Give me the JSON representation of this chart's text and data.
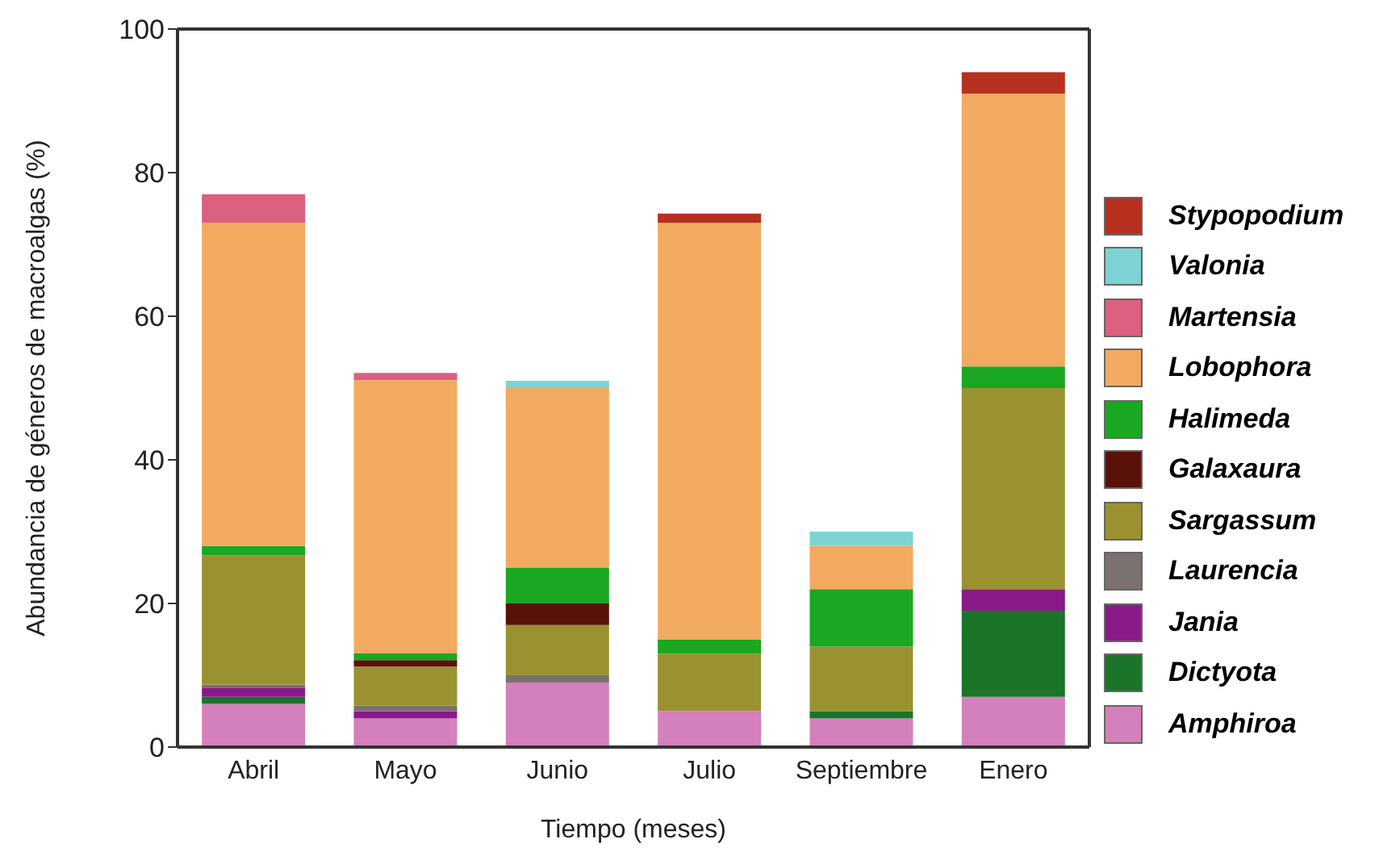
{
  "chart_data": {
    "type": "bar",
    "stacked": true,
    "xlabel": "Tiempo (meses)",
    "ylabel": "Abundancia de géneros de macroalgas (%)",
    "categories": [
      "Abril",
      "Mayo",
      "Junio",
      "Julio",
      "Septiembre",
      "Enero"
    ],
    "ylim": [
      0,
      100
    ],
    "yticks": [
      0,
      20,
      40,
      60,
      80,
      100
    ],
    "legend": "right",
    "grid": false,
    "series": [
      {
        "name": "Amphiroa",
        "color": "#d480bc",
        "values": [
          6,
          4,
          9,
          5,
          4,
          7
        ]
      },
      {
        "name": "Dictyota",
        "color": "#1a7528",
        "values": [
          1,
          null,
          null,
          null,
          1,
          12
        ]
      },
      {
        "name": "Jania",
        "color": "#8a1a8a",
        "values": [
          1.2,
          1,
          null,
          null,
          null,
          3
        ]
      },
      {
        "name": "Laurencia",
        "color": "#7a7270",
        "values": [
          0.5,
          0.8,
          1,
          null,
          null,
          null
        ]
      },
      {
        "name": "Sargassum",
        "color": "#9a9230",
        "values": [
          18,
          5.4,
          7,
          8,
          9,
          28
        ]
      },
      {
        "name": "Galaxaura",
        "color": "#5a1208",
        "values": [
          null,
          0.9,
          3,
          null,
          null,
          null
        ]
      },
      {
        "name": "Halimeda",
        "color": "#1aa823",
        "values": [
          1.3,
          1,
          5,
          2,
          8,
          3
        ]
      },
      {
        "name": "Lobophora",
        "color": "#f2aa60",
        "values": [
          45,
          38,
          25,
          58,
          6,
          38
        ]
      },
      {
        "name": "Martensia",
        "color": "#dc6080",
        "values": [
          4,
          1,
          null,
          null,
          null,
          null
        ]
      },
      {
        "name": "Valonia",
        "color": "#7dd3d3",
        "values": [
          null,
          null,
          1,
          null,
          2,
          null
        ]
      },
      {
        "name": "Stypopodium",
        "color": "#b83020",
        "values": [
          null,
          null,
          null,
          1.3,
          null,
          3
        ]
      }
    ]
  }
}
